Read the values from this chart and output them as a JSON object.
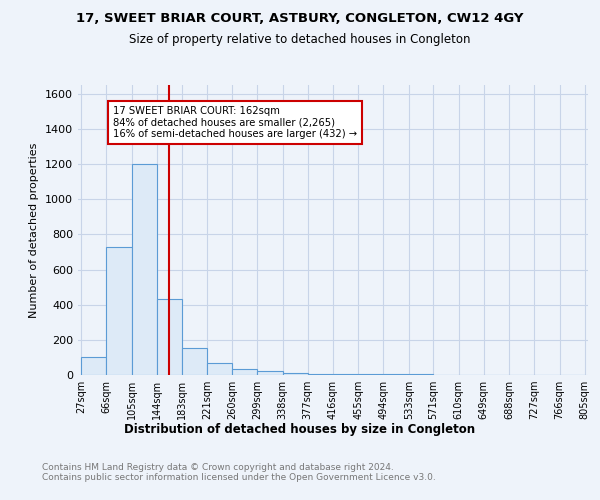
{
  "title": "17, SWEET BRIAR COURT, ASTBURY, CONGLETON, CW12 4GY",
  "subtitle": "Size of property relative to detached houses in Congleton",
  "xlabel": "Distribution of detached houses by size in Congleton",
  "ylabel": "Number of detached properties",
  "bin_edges": [
    27,
    66,
    105,
    144,
    183,
    221,
    260,
    299,
    338,
    377,
    416,
    455,
    494,
    533,
    571,
    610,
    649,
    688,
    727,
    766,
    805
  ],
  "bin_labels": [
    "27sqm",
    "66sqm",
    "105sqm",
    "144sqm",
    "183sqm",
    "221sqm",
    "260sqm",
    "299sqm",
    "338sqm",
    "377sqm",
    "416sqm",
    "455sqm",
    "494sqm",
    "533sqm",
    "571sqm",
    "610sqm",
    "649sqm",
    "688sqm",
    "727sqm",
    "766sqm",
    "805sqm"
  ],
  "bar_heights": [
    100,
    730,
    1200,
    430,
    155,
    70,
    35,
    20,
    12,
    8,
    6,
    5,
    4,
    3,
    2,
    2,
    1,
    1,
    1,
    1
  ],
  "bar_color": "#ddeaf7",
  "bar_edge_color": "#5b9bd5",
  "vline_x": 162,
  "vline_color": "#cc0000",
  "annotation_box_color": "#cc0000",
  "ann_line1": "17 SWEET BRIAR COURT: 162sqm",
  "ann_line2": "84% of detached houses are smaller (2,265)",
  "ann_line3": "16% of semi-detached houses are larger (432) →",
  "ylim": [
    0,
    1650
  ],
  "yticks": [
    0,
    200,
    400,
    600,
    800,
    1000,
    1200,
    1400,
    1600
  ],
  "footer": "Contains HM Land Registry data © Crown copyright and database right 2024.\nContains public sector information licensed under the Open Government Licence v3.0.",
  "bg_color": "#eef3fa",
  "plot_bg_color": "#eef3fa",
  "grid_color": "#c8d4e8"
}
